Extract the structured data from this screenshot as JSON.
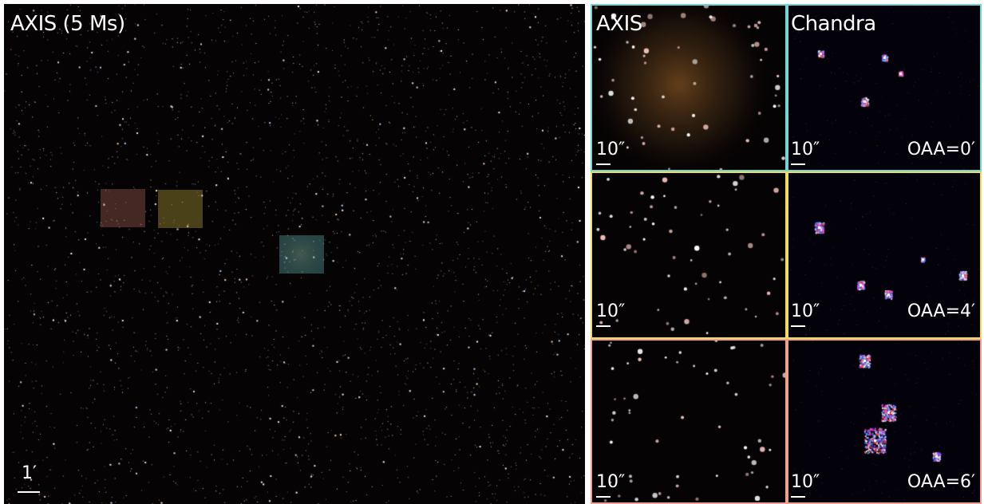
{
  "main_panel": {
    "title": "AXIS (5 Ms)",
    "scale_bar": "1′",
    "regions": [
      {
        "name": "region-6arcmin",
        "color": "#e8857a"
      },
      {
        "name": "region-4arcmin",
        "color": "#e8d24a"
      },
      {
        "name": "region-0arcmin",
        "color": "#72d6d6"
      }
    ]
  },
  "inset_columns": [
    "AXIS",
    "Chandra"
  ],
  "inset_rows": [
    {
      "oaa": "OAA=0′",
      "border_color": "#72d6d6",
      "scale_bar": "10″"
    },
    {
      "oaa": "OAA=4′",
      "border_color": "#f0dc5a",
      "scale_bar": "10″"
    },
    {
      "oaa": "OAA=6′",
      "border_color": "#f0a090",
      "scale_bar": "10″"
    }
  ]
}
